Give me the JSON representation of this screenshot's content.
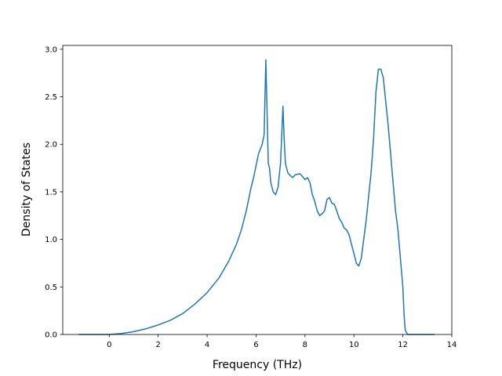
{
  "chart_data": {
    "type": "line",
    "title": "",
    "xlabel": "Frequency (THz)",
    "ylabel": "Density of States",
    "xlim": [
      -1.9,
      14.0
    ],
    "ylim": [
      0.0,
      3.04
    ],
    "xticks": [
      0,
      2,
      4,
      6,
      8,
      10,
      12,
      14
    ],
    "xtick_labels": [
      "0",
      "2",
      "4",
      "6",
      "8",
      "10",
      "12",
      "14"
    ],
    "yticks": [
      0.0,
      0.5,
      1.0,
      1.5,
      2.0,
      2.5,
      3.0
    ],
    "ytick_labels": [
      "0.0",
      "0.5",
      "1.0",
      "1.5",
      "2.0",
      "2.5",
      "3.0"
    ],
    "grid": false,
    "line_color": "#1f77b4",
    "series": [
      {
        "x": [
          -1.25,
          -0.5,
          0.0,
          0.5,
          1.0,
          1.5,
          2.0,
          2.5,
          3.0,
          3.5,
          4.0,
          4.5,
          4.9,
          5.2,
          5.4,
          5.6,
          5.8,
          5.9,
          6.1,
          6.25,
          6.33,
          6.4,
          6.5,
          6.55,
          6.6,
          6.7,
          6.8,
          6.9,
          7.0,
          7.1,
          7.15,
          7.2,
          7.3,
          7.4,
          7.5,
          7.6,
          7.8,
          7.9,
          8.0,
          8.1,
          8.2,
          8.3,
          8.4,
          8.5,
          8.6,
          8.7,
          8.8,
          8.9,
          9.0,
          9.1,
          9.2,
          9.3,
          9.4,
          9.5,
          9.6,
          9.7,
          9.8,
          9.9,
          10.0,
          10.1,
          10.2,
          10.3,
          10.4,
          10.5,
          10.6,
          10.7,
          10.8,
          10.9,
          11.0,
          11.1,
          11.2,
          11.3,
          11.4,
          11.5,
          11.6,
          11.7,
          11.8,
          11.9,
          12.0,
          12.05,
          12.1,
          12.2,
          12.5,
          13.0,
          13.3
        ],
        "y": [
          0.0,
          0.0,
          0.0,
          0.01,
          0.03,
          0.06,
          0.1,
          0.15,
          0.22,
          0.32,
          0.44,
          0.6,
          0.78,
          0.95,
          1.1,
          1.3,
          1.55,
          1.65,
          1.9,
          2.0,
          2.1,
          2.89,
          1.8,
          1.75,
          1.6,
          1.5,
          1.47,
          1.55,
          1.8,
          2.4,
          2.05,
          1.8,
          1.7,
          1.67,
          1.65,
          1.68,
          1.69,
          1.66,
          1.63,
          1.65,
          1.6,
          1.47,
          1.4,
          1.3,
          1.25,
          1.27,
          1.3,
          1.42,
          1.44,
          1.38,
          1.37,
          1.3,
          1.22,
          1.18,
          1.12,
          1.1,
          1.05,
          0.95,
          0.85,
          0.75,
          0.72,
          0.8,
          1.0,
          1.2,
          1.45,
          1.7,
          2.05,
          2.55,
          2.79,
          2.79,
          2.7,
          2.45,
          2.2,
          1.9,
          1.6,
          1.3,
          1.1,
          0.8,
          0.5,
          0.2,
          0.04,
          0.0,
          0.0,
          0.0,
          0.0
        ]
      }
    ]
  }
}
